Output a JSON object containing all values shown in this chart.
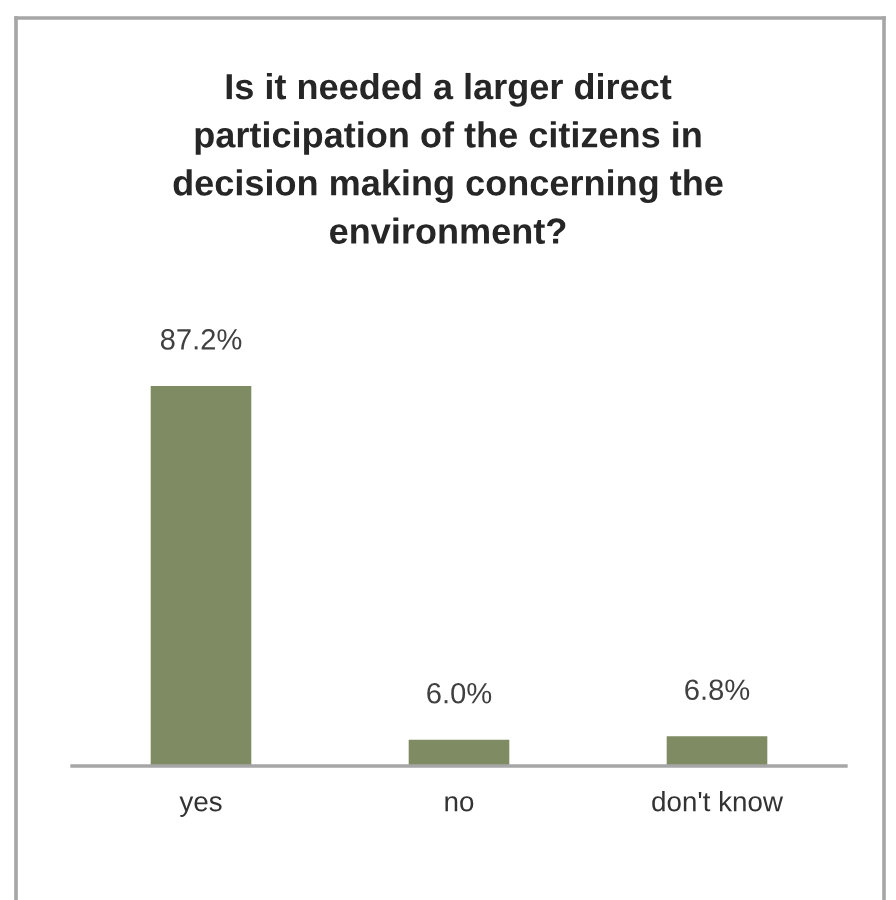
{
  "chart_data": {
    "type": "bar",
    "title": "Is it needed a larger direct\nparticipation of the citizens in\ndecision making concerning the\nenvironment?",
    "categories": [
      "yes",
      "no",
      "don't know"
    ],
    "values": [
      87.2,
      6.0,
      6.8
    ],
    "color": "#7f8c63",
    "value_labels": [
      "87.2%",
      "6.0%",
      "6.8%"
    ],
    "tick_labels": "x",
    "grid": false
  }
}
